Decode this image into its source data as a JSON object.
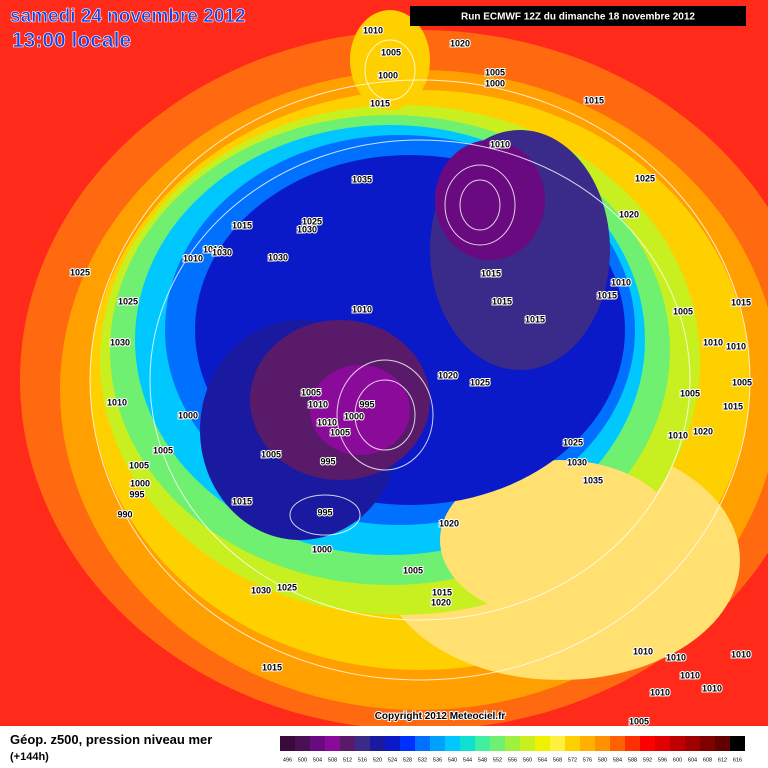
{
  "header": {
    "date": "samedi 24 novembre 2012",
    "time": "13:00 locale",
    "run": "Run ECMWF 12Z du dimanche 18 novembre 2012"
  },
  "map": {
    "isobar_labels": [
      "1010",
      "1020",
      "1005",
      "1000",
      "1005",
      "1000",
      "1015",
      "1015",
      "1010",
      "1035",
      "1025",
      "1020",
      "1015",
      "1025",
      "1030",
      "1010",
      "1030",
      "1010",
      "1030",
      "1025",
      "1015",
      "1010",
      "1015",
      "1015",
      "1025",
      "1005",
      "1015",
      "1015",
      "1010",
      "1030",
      "1010",
      "1010",
      "1020",
      "1025",
      "1005",
      "1010",
      "1005",
      "1010",
      "995",
      "1000",
      "1000",
      "1005",
      "1015",
      "1010",
      "1005",
      "1010",
      "1020",
      "1025",
      "1005",
      "1005",
      "995",
      "1030",
      "1005",
      "1000",
      "995",
      "1035",
      "1015",
      "990",
      "995",
      "1020",
      "1000",
      "1005",
      "1030",
      "1025",
      "1015",
      "1020",
      "1015",
      "1010",
      "1010",
      "1010",
      "1010",
      "1010",
      "1010",
      "1005"
    ],
    "copyright": "Copyright 2012 Meteociel.fr"
  },
  "footer": {
    "title": "Géop. z500, pression niveau mer",
    "lead": "(+144h)",
    "scale": {
      "labels": [
        "496",
        "500",
        "504",
        "508",
        "512",
        "516",
        "520",
        "524",
        "528",
        "532",
        "536",
        "540",
        "544",
        "548",
        "552",
        "556",
        "560",
        "564",
        "568",
        "572",
        "576",
        "580",
        "584",
        "588",
        "592",
        "596",
        "600",
        "604",
        "608",
        "612",
        "616"
      ],
      "colors": [
        "#3a0a3a",
        "#4b0f55",
        "#6a0a80",
        "#8a0a9a",
        "#5a1a6a",
        "#3a2a8a",
        "#1a1aa0",
        "#0a1ac8",
        "#0030ff",
        "#0070ff",
        "#00a0ff",
        "#00c8ff",
        "#10e0d0",
        "#40f0a0",
        "#70f070",
        "#a0f040",
        "#c8f020",
        "#f0f000",
        "#fff040",
        "#ffd000",
        "#ffb000",
        "#ff9000",
        "#ff6000",
        "#ff3000",
        "#ff0000",
        "#e00000",
        "#c00000",
        "#a00000",
        "#800000",
        "#600000",
        "#000000"
      ]
    }
  }
}
